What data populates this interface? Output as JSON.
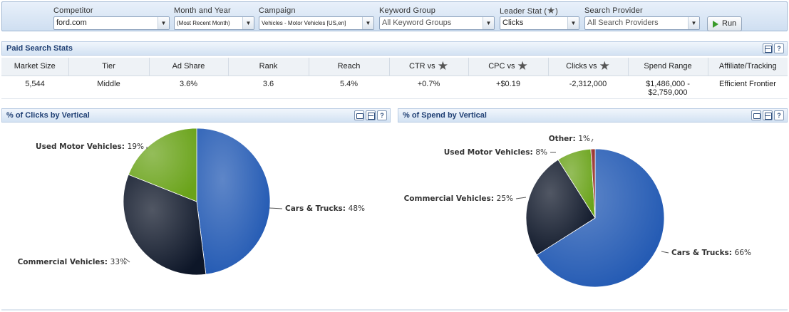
{
  "filters": {
    "competitor": {
      "label": "Competitor",
      "value": "ford.com"
    },
    "month_year": {
      "label": "Month and Year",
      "value": "(Most Recent Month)"
    },
    "campaign": {
      "label": "Campaign",
      "value": "Vehicles - Motor Vehicles [US,en]"
    },
    "keyword_group": {
      "label": "Keyword Group",
      "value": "All Keyword Groups"
    },
    "leader_stat": {
      "label": "Leader Stat (",
      "label_end": ")",
      "value": "Clicks"
    },
    "search_provider": {
      "label": "Search Provider",
      "value": "All Search Providers"
    },
    "run_label": "Run"
  },
  "paid_search": {
    "title": "Paid Search Stats",
    "columns": [
      "Market Size",
      "Tier",
      "Ad Share",
      "Rank",
      "Reach",
      "CTR vs",
      "CPC vs",
      "Clicks vs",
      "Spend Range",
      "Affiliate/Tracking"
    ],
    "row": [
      "5,544",
      "Middle",
      "3.6%",
      "3.6",
      "5.4%",
      "+0.7%",
      "+$0.19",
      "-2,312,000",
      "$1,486,000 -",
      "Efficient Frontier"
    ],
    "spend_range_line2": "$2,759,000"
  },
  "icons": {
    "help_glyph": "?"
  },
  "chart_data": [
    {
      "type": "pie",
      "title": "% of Clicks by Vertical",
      "slices": [
        {
          "label": "Cars & Trucks",
          "value": 48,
          "pct_label": "48%",
          "color": "#1f57b2"
        },
        {
          "label": "Commercial Vehicles",
          "value": 33,
          "pct_label": "33%",
          "color": "#0d1628"
        },
        {
          "label": "Used Motor Vehicles",
          "value": 19,
          "pct_label": "19%",
          "color": "#6aa31a"
        }
      ]
    },
    {
      "type": "pie",
      "title": "% of Spend by Vertical",
      "slices": [
        {
          "label": "Cars & Trucks",
          "value": 66,
          "pct_label": "66%",
          "color": "#1f57b2"
        },
        {
          "label": "Commercial Vehicles",
          "value": 25,
          "pct_label": "25%",
          "color": "#0d1628"
        },
        {
          "label": "Used Motor Vehicles",
          "value": 8,
          "pct_label": "8%",
          "color": "#6aa31a"
        },
        {
          "label": "Other",
          "value": 1,
          "pct_label": "1%",
          "color": "#8c1c18"
        }
      ]
    }
  ]
}
